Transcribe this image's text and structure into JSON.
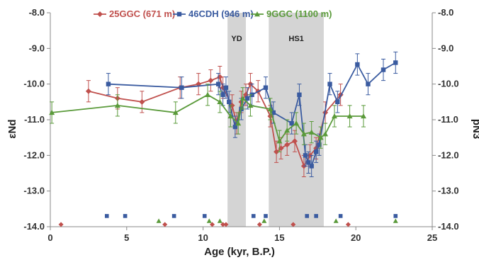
{
  "chart_data": {
    "type": "line",
    "xlabel": "Age (kyr, B.P.)",
    "ylabel_left": "εNd",
    "ylabel_right": "pN3",
    "xlim": [
      0,
      25
    ],
    "ylim": [
      -14.0,
      -8.0
    ],
    "xticks": [
      "0",
      "5",
      "10",
      "15",
      "20",
      "25"
    ],
    "yticks": [
      "-8.0",
      "-9.0",
      "-10.0",
      "-11.0",
      "-12.0",
      "-13.0",
      "-14.0"
    ],
    "legend_position": "top",
    "annotations": [
      {
        "label": "YD",
        "x_start": 11.6,
        "x_end": 12.8
      },
      {
        "label": "HS1",
        "x_start": 14.3,
        "x_end": 17.9
      }
    ],
    "series": [
      {
        "name": "25GGC (671 m)",
        "color": "#c0504d",
        "marker": "diamond",
        "points": [
          {
            "x": 2.5,
            "y": -10.2,
            "err": 0.3
          },
          {
            "x": 4.4,
            "y": -10.4,
            "err": 0.3
          },
          {
            "x": 6.0,
            "y": -10.5,
            "err": 0.3
          },
          {
            "x": 8.5,
            "y": -10.1,
            "err": 0.3
          },
          {
            "x": 9.7,
            "y": -10.0,
            "err": 0.3
          },
          {
            "x": 10.5,
            "y": -9.9,
            "err": 0.3
          },
          {
            "x": 11.1,
            "y": -9.8,
            "err": 0.3
          },
          {
            "x": 11.3,
            "y": -10.1,
            "err": 0.3
          },
          {
            "x": 11.9,
            "y": -10.6,
            "err": 0.3
          },
          {
            "x": 12.2,
            "y": -11.1,
            "err": 0.3
          },
          {
            "x": 12.5,
            "y": -10.5,
            "err": 0.3
          },
          {
            "x": 12.8,
            "y": -10.3,
            "err": 0.3
          },
          {
            "x": 13.1,
            "y": -10.0,
            "err": 0.3
          },
          {
            "x": 13.6,
            "y": -10.2,
            "err": 0.3
          },
          {
            "x": 14.4,
            "y": -10.9,
            "err": 0.3
          },
          {
            "x": 14.8,
            "y": -11.9,
            "err": 0.3
          },
          {
            "x": 15.1,
            "y": -11.8,
            "err": 0.3
          },
          {
            "x": 15.5,
            "y": -11.7,
            "err": 0.3
          },
          {
            "x": 16.0,
            "y": -11.6,
            "err": 0.3
          },
          {
            "x": 16.6,
            "y": -12.3,
            "err": 0.3
          },
          {
            "x": 17.0,
            "y": -12.0,
            "err": 0.3
          },
          {
            "x": 17.4,
            "y": -11.8,
            "err": 0.3
          },
          {
            "x": 18.0,
            "y": -10.8,
            "err": 0.3
          },
          {
            "x": 19.0,
            "y": -10.3,
            "err": 0.3
          }
        ],
        "bottom_markers_x": [
          0.7,
          7.5,
          10.6,
          11.3,
          11.5,
          13.7,
          15.9,
          19.5
        ]
      },
      {
        "name": "46CDH (946 m)",
        "color": "#3a5ba0",
        "marker": "square",
        "points": [
          {
            "x": 3.8,
            "y": -10.0,
            "err": 0.3
          },
          {
            "x": 8.6,
            "y": -10.1,
            "err": 0.3
          },
          {
            "x": 11.0,
            "y": -10.0,
            "err": 0.3
          },
          {
            "x": 11.3,
            "y": -10.3,
            "err": 0.3
          },
          {
            "x": 11.5,
            "y": -10.1,
            "err": 0.3
          },
          {
            "x": 11.7,
            "y": -10.5,
            "err": 0.3
          },
          {
            "x": 12.1,
            "y": -11.2,
            "err": 0.3
          },
          {
            "x": 12.5,
            "y": -10.7,
            "err": 0.3
          },
          {
            "x": 12.9,
            "y": -10.4,
            "err": 0.3
          },
          {
            "x": 13.2,
            "y": -10.3,
            "err": 0.3
          },
          {
            "x": 14.1,
            "y": -10.1,
            "err": 0.3
          },
          {
            "x": 14.6,
            "y": -10.8,
            "err": 0.3
          },
          {
            "x": 15.8,
            "y": -11.1,
            "err": 0.3
          },
          {
            "x": 16.3,
            "y": -10.3,
            "err": 0.3
          },
          {
            "x": 16.7,
            "y": -12.0,
            "err": 0.3
          },
          {
            "x": 16.9,
            "y": -12.2,
            "err": 0.3
          },
          {
            "x": 17.1,
            "y": -12.3,
            "err": 0.3
          },
          {
            "x": 17.4,
            "y": -11.9,
            "err": 0.3
          },
          {
            "x": 17.6,
            "y": -11.7,
            "err": 0.3
          },
          {
            "x": 18.3,
            "y": -10.0,
            "err": 0.3
          },
          {
            "x": 18.8,
            "y": -10.5,
            "err": 0.3
          },
          {
            "x": 20.1,
            "y": -9.45,
            "err": 0.3
          },
          {
            "x": 20.8,
            "y": -10.0,
            "err": 0.3
          },
          {
            "x": 21.8,
            "y": -9.6,
            "err": 0.3
          },
          {
            "x": 22.6,
            "y": -9.4,
            "err": 0.3
          }
        ],
        "bottom_markers_x": [
          3.7,
          4.9,
          8.1,
          10.1,
          13.3,
          14.1,
          16.8,
          17.4,
          19.0,
          22.6
        ]
      },
      {
        "name": "9GGC (1100 m)",
        "color": "#5a9a3a",
        "marker": "triangle",
        "points": [
          {
            "x": 0.1,
            "y": -10.8,
            "err": 0.3
          },
          {
            "x": 4.4,
            "y": -10.6,
            "err": 0.3
          },
          {
            "x": 8.2,
            "y": -10.8,
            "err": 0.3
          },
          {
            "x": 10.3,
            "y": -10.3,
            "err": 0.3
          },
          {
            "x": 11.1,
            "y": -10.5,
            "err": 0.3
          },
          {
            "x": 11.8,
            "y": -10.9,
            "err": 0.3
          },
          {
            "x": 12.3,
            "y": -11.1,
            "err": 0.3
          },
          {
            "x": 12.6,
            "y": -10.4,
            "err": 0.3
          },
          {
            "x": 13.1,
            "y": -10.6,
            "err": 0.3
          },
          {
            "x": 14.4,
            "y": -10.7,
            "err": 0.3
          },
          {
            "x": 15.0,
            "y": -11.6,
            "err": 0.3
          },
          {
            "x": 15.5,
            "y": -11.3,
            "err": 0.3
          },
          {
            "x": 16.1,
            "y": -11.1,
            "err": 0.3
          },
          {
            "x": 16.6,
            "y": -11.4,
            "err": 0.3
          },
          {
            "x": 17.1,
            "y": -11.35,
            "err": 0.3
          },
          {
            "x": 17.7,
            "y": -11.5,
            "err": 0.3
          },
          {
            "x": 18.0,
            "y": -11.4,
            "err": 0.3
          },
          {
            "x": 18.6,
            "y": -10.9,
            "err": 0.3
          },
          {
            "x": 19.6,
            "y": -10.9,
            "err": 0.3
          },
          {
            "x": 20.5,
            "y": -10.9,
            "err": 0.3
          }
        ],
        "bottom_markers_x": [
          7.1,
          10.4,
          11.1,
          14.0,
          18.7,
          22.6
        ]
      }
    ]
  }
}
